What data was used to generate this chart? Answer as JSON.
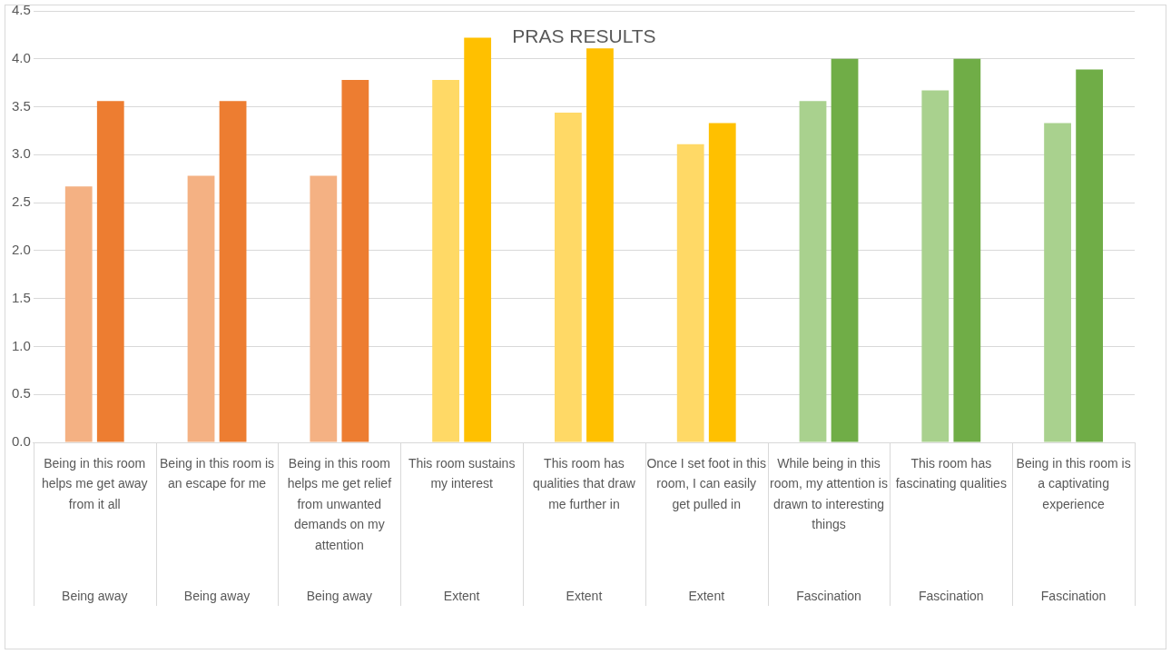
{
  "chart_data": {
    "type": "bar",
    "title": "PRAS RESULTS",
    "categories": [
      "Being in this room helps me get away from it all",
      "Being in this room is an escape for me",
      "Being in this room helps me get relief from unwanted demands on my attention",
      "This room sustains my interest",
      "This room has qualities that draw me further in",
      "Once I set foot in this room, I can easily get pulled in",
      "While being in this room, my attention is drawn to interesting things",
      "This room has fascinating qualities",
      "Being in this room is a captivating experience"
    ],
    "series": [
      {
        "colors": [
          "#f4b183",
          "#f4b183",
          "#f4b183",
          "#ffd966",
          "#ffd966",
          "#ffd966",
          "#a9d18e",
          "#a9d18e",
          "#a9d18e"
        ],
        "values": [
          2.67,
          2.78,
          2.78,
          3.78,
          3.44,
          3.11,
          3.56,
          3.67,
          3.33
        ]
      },
      {
        "colors": [
          "#ed7d31",
          "#ed7d31",
          "#ed7d31",
          "#ffc000",
          "#ffc000",
          "#ffc000",
          "#70ad47",
          "#70ad47",
          "#70ad47"
        ],
        "values": [
          3.56,
          3.56,
          3.78,
          4.22,
          4.11,
          3.33,
          4.0,
          4.0,
          3.89
        ]
      }
    ],
    "ylim": [
      0,
      4.5
    ],
    "yticks": [
      {
        "value": 0,
        "label": "0.0"
      },
      {
        "value": 0.5,
        "label": "0.5"
      },
      {
        "value": 1,
        "label": "1.0"
      },
      {
        "value": 1.5,
        "label": "1.5"
      },
      {
        "value": 2,
        "label": "2.0"
      },
      {
        "value": 2.5,
        "label": "2.5"
      },
      {
        "value": 3,
        "label": "3.0"
      },
      {
        "value": 3.5,
        "label": "3.5"
      },
      {
        "value": 4,
        "label": "4.0"
      },
      {
        "value": 4.5,
        "label": "4.5"
      }
    ],
    "grid": "y",
    "legend": false,
    "annotations": [
      "Being away",
      "Being away",
      "Being away",
      "Extent",
      "Extent",
      "Extent",
      "Fascination",
      "Fascination",
      "Fascination"
    ]
  }
}
